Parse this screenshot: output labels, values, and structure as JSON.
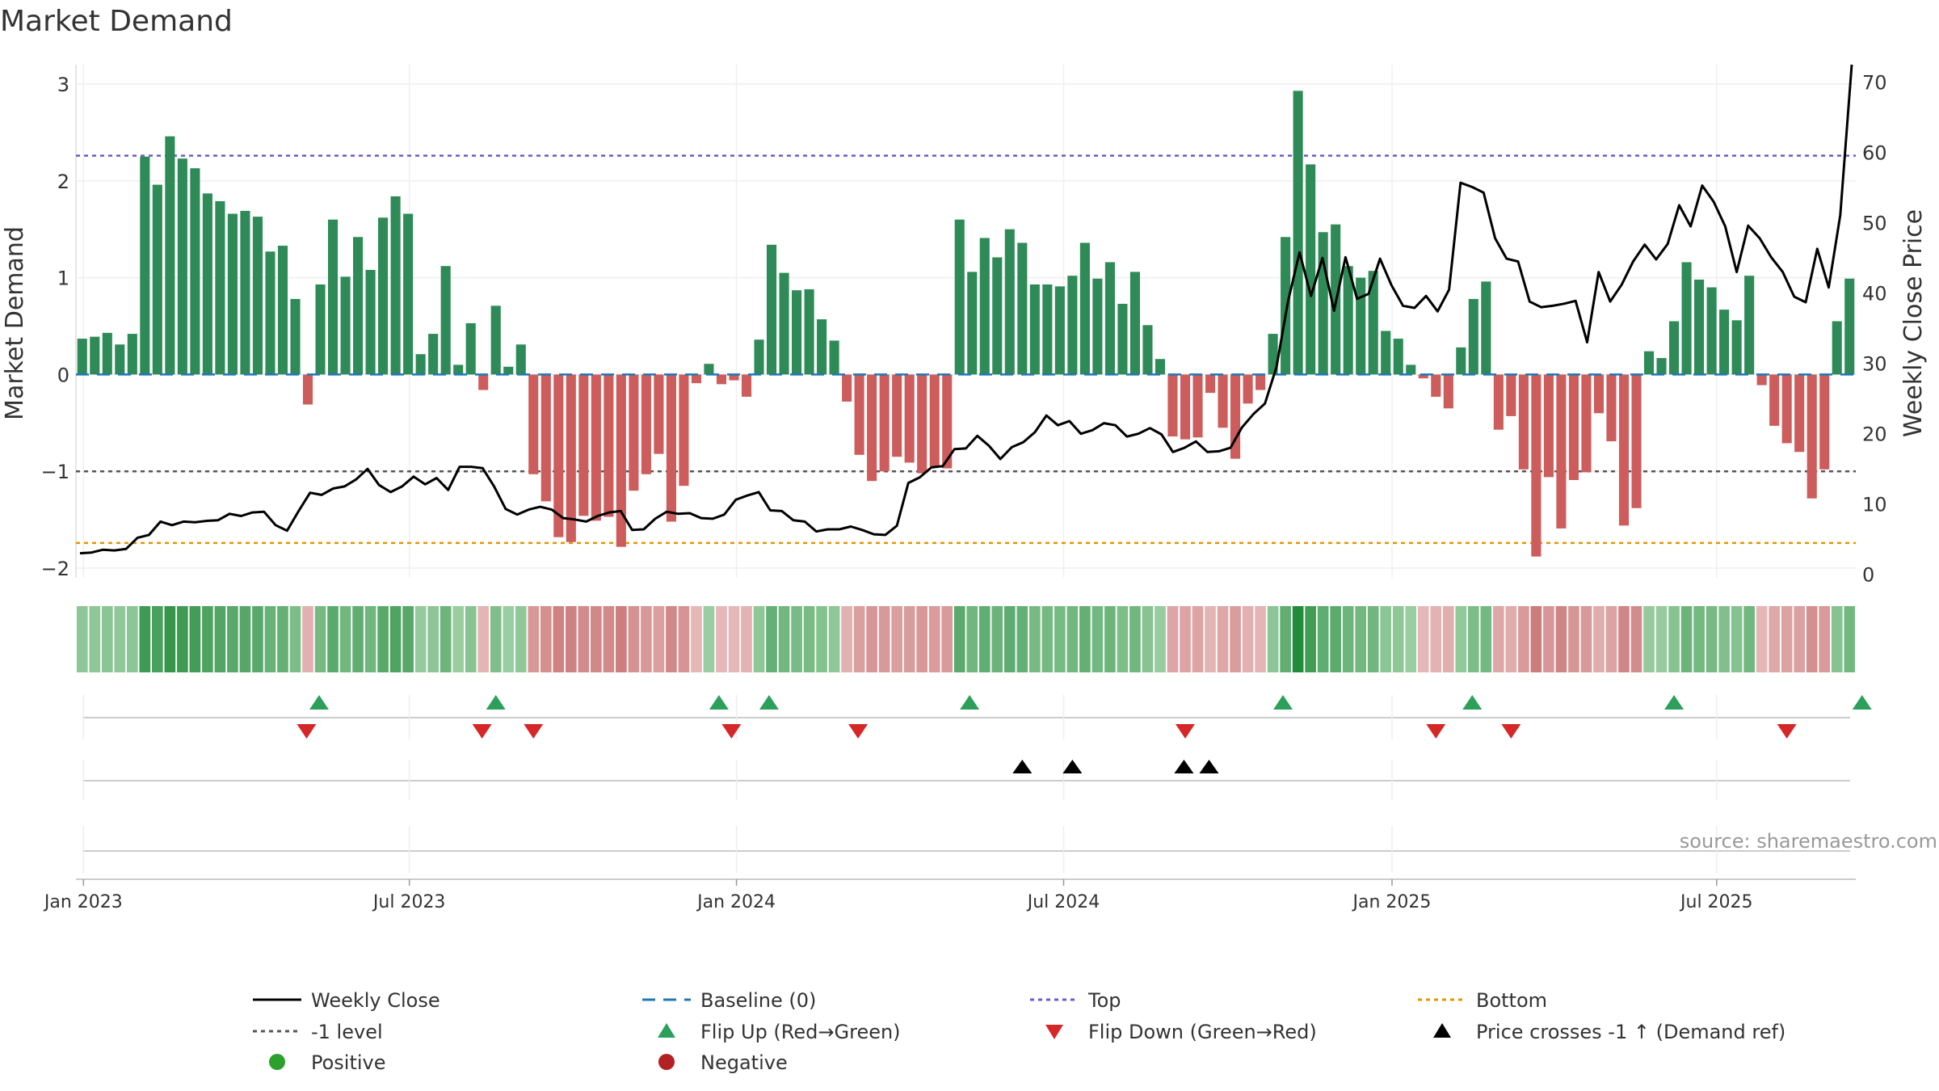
{
  "chart_data": {
    "type": "bar",
    "title": "Market Demand",
    "ylabel": "Market Demand",
    "y2label": "Weekly Close Price",
    "ylim": [
      -2.1,
      3.2
    ],
    "y2lim": [
      -0.5,
      72.5
    ],
    "yticks": [
      "3",
      "2",
      "1",
      "0",
      "−1",
      "−2"
    ],
    "yticks_values": [
      3,
      2,
      1,
      0,
      -1,
      -2
    ],
    "y2ticks": [
      "70",
      "60",
      "50",
      "40",
      "30",
      "20",
      "10",
      "0"
    ],
    "y2ticks_values": [
      70,
      60,
      50,
      40,
      30,
      20,
      10,
      0
    ],
    "x_ticks": [
      "Jan 2023",
      "Jul 2023",
      "Jan 2024",
      "Jul 2024",
      "Jan 2025",
      "Jul 2025"
    ],
    "x_ticks_week": [
      0.6,
      26.6,
      52.7,
      78.8,
      105.0,
      130.9
    ],
    "levels": {
      "top": 2.26,
      "minus_one": -1.0,
      "bottom": -1.74
    },
    "demand": [
      0.37,
      0.39,
      0.43,
      0.31,
      0.42,
      2.25,
      1.96,
      2.46,
      2.23,
      2.13,
      1.87,
      1.79,
      1.66,
      1.69,
      1.63,
      1.27,
      1.33,
      0.78,
      -0.31,
      0.93,
      1.6,
      1.01,
      1.42,
      1.08,
      1.62,
      1.84,
      1.66,
      0.21,
      0.42,
      1.12,
      0.1,
      0.53,
      -0.16,
      0.71,
      0.08,
      0.31,
      -1.03,
      -1.31,
      -1.68,
      -1.73,
      -1.46,
      -1.51,
      -1.47,
      -1.78,
      -1.2,
      -1.03,
      -0.82,
      -1.52,
      -1.15,
      -0.09,
      0.11,
      -0.1,
      -0.06,
      -0.23,
      0.36,
      1.34,
      1.05,
      0.87,
      0.88,
      0.57,
      0.35,
      -0.28,
      -0.83,
      -1.1,
      -1.0,
      -0.85,
      -0.91,
      -1.02,
      -0.95,
      -0.97,
      1.6,
      1.06,
      1.41,
      1.21,
      1.5,
      1.36,
      0.93,
      0.93,
      0.91,
      1.02,
      1.36,
      0.99,
      1.16,
      0.73,
      1.06,
      0.51,
      0.16,
      -0.64,
      -0.67,
      -0.65,
      -0.19,
      -0.55,
      -0.87,
      -0.3,
      -0.16,
      0.42,
      1.42,
      2.93,
      2.17,
      1.47,
      1.55,
      1.12,
      1.0,
      1.07,
      0.45,
      0.37,
      0.1,
      -0.04,
      -0.23,
      -0.35,
      0.28,
      0.78,
      0.96,
      -0.57,
      -0.43,
      -0.98,
      -1.88,
      -1.06,
      -1.59,
      -1.09,
      -1.01,
      -0.4,
      -0.69,
      -1.56,
      -1.38,
      0.24,
      0.17,
      0.55,
      1.16,
      0.98,
      0.9,
      0.67,
      0.56,
      1.02,
      -0.11,
      -0.53,
      -0.71,
      -0.8,
      -1.28,
      -0.98,
      0.55,
      0.99
    ],
    "weekly_close": [
      3.0,
      3.1,
      3.5,
      3.4,
      3.6,
      5.2,
      5.6,
      7.5,
      7.0,
      7.5,
      7.4,
      7.6,
      7.7,
      8.6,
      8.3,
      8.8,
      8.9,
      7.0,
      6.2,
      9.0,
      11.6,
      11.3,
      12.2,
      12.5,
      13.5,
      15.0,
      12.7,
      11.7,
      12.5,
      13.9,
      12.8,
      13.7,
      12.0,
      15.3,
      15.3,
      15.1,
      12.5,
      9.3,
      8.5,
      9.2,
      9.6,
      9.2,
      8.0,
      7.8,
      7.5,
      8.3,
      8.8,
      9.0,
      6.3,
      6.4,
      7.9,
      8.9,
      8.6,
      8.7,
      8.0,
      7.9,
      8.5,
      10.6,
      11.2,
      11.7,
      9.1,
      9.0,
      7.7,
      7.5,
      6.1,
      6.4,
      6.4,
      6.8,
      6.3,
      5.7,
      5.6,
      6.9,
      13.0,
      13.8,
      15.2,
      15.4,
      17.8,
      17.9,
      19.7,
      18.3,
      16.4,
      18.1,
      18.8,
      20.2,
      22.6,
      21.2,
      21.8,
      20.0,
      20.5,
      21.5,
      21.2,
      19.6,
      20.0,
      20.8,
      19.9,
      17.4,
      18.0,
      18.9,
      17.4,
      17.5,
      18.0,
      20.9,
      22.8,
      24.3,
      29.5,
      38.8,
      45.8,
      39.6,
      45.0,
      37.5,
      45.1,
      39.2,
      39.9,
      44.9,
      41.1,
      38.2,
      37.9,
      39.6,
      37.4,
      40.5,
      55.7,
      55.1,
      54.3,
      47.8,
      44.9,
      44.5,
      38.8,
      38.0,
      38.2,
      38.5,
      38.9,
      33.0,
      43.0,
      38.8,
      41.2,
      44.5,
      46.9,
      44.8,
      47.0,
      52.5,
      49.5,
      55.3,
      53.0,
      49.5,
      43.0,
      49.6,
      47.8,
      45.1,
      43.0,
      39.5,
      38.7,
      46.3,
      40.8,
      51.1,
      72.5
    ],
    "positive_heat": [
      0.36,
      0.38,
      0.42,
      0.31,
      0.41,
      2.2,
      1.92,
      2.41,
      2.19,
      2.09,
      1.83,
      1.75,
      1.63,
      1.66,
      1.6,
      1.24,
      1.3,
      0.76,
      null,
      0.91,
      1.57,
      0.99,
      1.39,
      1.06,
      1.59,
      1.8,
      1.63,
      0.2,
      0.41,
      1.1,
      0.1,
      0.52,
      null,
      0.7,
      0.08,
      0.3
    ],
    "flip_up_weeks": [
      19.4,
      33.5,
      51.3,
      55.3,
      71.3,
      96.3,
      111.4,
      127.5,
      142.5
    ],
    "flip_down_weeks": [
      18.4,
      32.4,
      36.5,
      52.3,
      62.4,
      88.5,
      108.5,
      114.5,
      136.5
    ],
    "price_cross_weeks": [
      75.5,
      79.5,
      88.4,
      90.4
    ],
    "legend": [
      {
        "label": "Weekly Close",
        "key": "weekly_close"
      },
      {
        "label": "Baseline (0)",
        "key": "baseline"
      },
      {
        "label": "Top",
        "key": "top"
      },
      {
        "label": "Bottom",
        "key": "bottom"
      },
      {
        "label": "-1 level",
        "key": "minus_one"
      },
      {
        "label": "Flip Up (Red→Green)",
        "key": "flip_up"
      },
      {
        "label": "Flip Down (Green→Red)",
        "key": "flip_down"
      },
      {
        "label": "Price crosses -1 ↑ (Demand ref)",
        "key": "price_cross"
      },
      {
        "label": "Positive",
        "key": "positive"
      },
      {
        "label": "Negative",
        "key": "negative"
      }
    ],
    "source": "source: sharemaestro.com",
    "colors": {
      "positive_bar": "#2e8b57",
      "negative_bar": "#cd5c5c",
      "price_line": "#000000",
      "baseline": "#1f77b4",
      "top": "#6a5acd",
      "bottom": "#e69500",
      "minus_one": "#555555",
      "flip_up": "#2ca05a",
      "flip_down": "#d62728",
      "price_cross": "#000000",
      "positive_dot": "#2ca02c",
      "negative_dot": "#b22222"
    }
  }
}
